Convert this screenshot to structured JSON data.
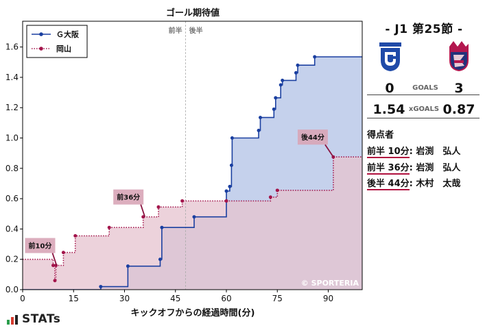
{
  "chart_data": {
    "type": "line",
    "title": "ゴール期待値",
    "xlabel": "キックオフからの経過時間(分)",
    "ylabel": "",
    "xlim": [
      0,
      100
    ],
    "ylim": [
      0,
      1.77
    ],
    "xticks": [
      0,
      15,
      30,
      45,
      60,
      75,
      90
    ],
    "yticks": [
      0.0,
      0.2,
      0.4,
      0.6,
      0.8,
      1.0,
      1.2,
      1.4,
      1.6
    ],
    "halftime_x": 48,
    "halftime_labels": [
      "前半",
      "後半"
    ],
    "grid": false,
    "legend_position": "top-left",
    "watermark": "© SPORTERIA",
    "series": [
      {
        "name": "Ｇ大阪",
        "color": "#1a3fa0",
        "fill": "#c5d1ec",
        "style": "solid",
        "points": [
          [
            0,
            0.0
          ],
          [
            23,
            0.02
          ],
          [
            31,
            0.155
          ],
          [
            40.5,
            0.2
          ],
          [
            41,
            0.41
          ],
          [
            50.5,
            0.48
          ],
          [
            60,
            0.65
          ],
          [
            61,
            0.68
          ],
          [
            61.5,
            0.82
          ],
          [
            61.7,
            1.0
          ],
          [
            69.5,
            1.05
          ],
          [
            70,
            1.135
          ],
          [
            74,
            1.19
          ],
          [
            74.5,
            1.265
          ],
          [
            76,
            1.35
          ],
          [
            76.5,
            1.38
          ],
          [
            80.5,
            1.43
          ],
          [
            81,
            1.48
          ],
          [
            86,
            1.535
          ],
          [
            100,
            1.535
          ]
        ]
      },
      {
        "name": "岡山",
        "color": "#a3154b",
        "fill": "#e6c3cf",
        "style": "dotted",
        "points": [
          [
            0,
            0.2
          ],
          [
            9,
            0.16
          ],
          [
            9.5,
            0.06
          ],
          [
            9.8,
            0.16
          ],
          [
            12,
            0.245
          ],
          [
            15.5,
            0.355
          ],
          [
            25.5,
            0.41
          ],
          [
            35.5,
            0.48
          ],
          [
            40,
            0.545
          ],
          [
            47,
            0.585
          ],
          [
            60,
            0.585
          ],
          [
            73,
            0.61
          ],
          [
            75,
            0.655
          ],
          [
            91.5,
            0.875
          ],
          [
            100,
            0.875
          ]
        ]
      }
    ],
    "annotations": [
      {
        "text": "前10分",
        "x": 10,
        "y": 0.16
      },
      {
        "text": "前36分",
        "x": 36,
        "y": 0.48
      },
      {
        "text": "後44分",
        "x": 91.5,
        "y": 0.875
      }
    ]
  },
  "match": {
    "title": "- J1 第25節 -",
    "home_crest": "gamba-osaka-crest",
    "away_crest": "fagiano-okayama-crest",
    "goals_home": "0",
    "goals_away": "3",
    "goals_label": "GOALS",
    "xg_home": "1.54",
    "xg_away": "0.87",
    "xg_label": "xGOALS"
  },
  "scorers": {
    "heading": "得点者",
    "items": [
      {
        "time": "前半 10分",
        "name": "岩渕　弘人"
      },
      {
        "time": "前半 36分",
        "name": "岩渕　弘人"
      },
      {
        "time": "後半 44分",
        "name": "木村　太哉"
      }
    ]
  },
  "brand": {
    "name": "STATs"
  }
}
